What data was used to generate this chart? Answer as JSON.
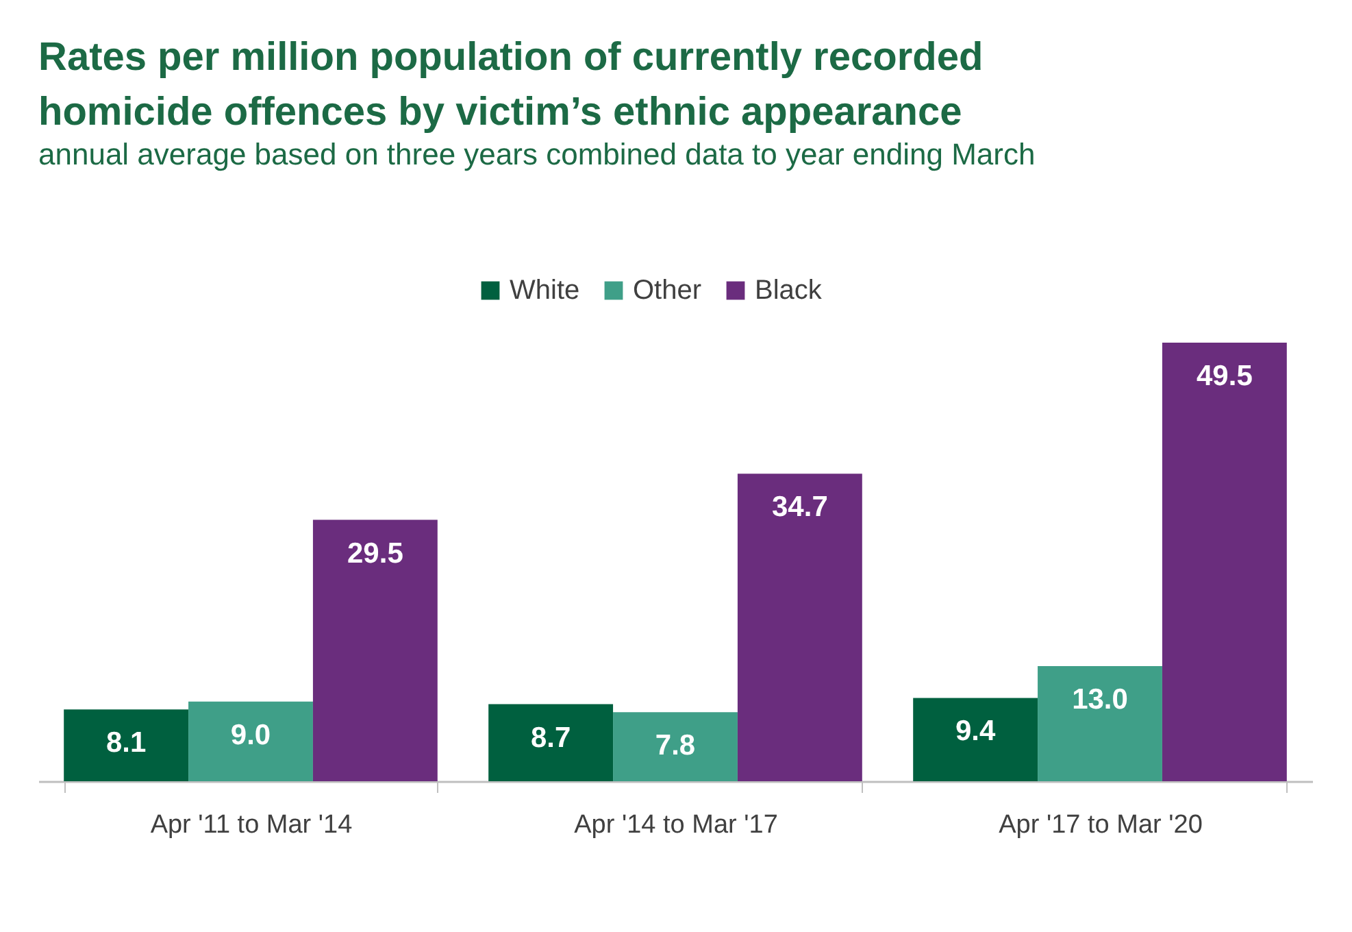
{
  "chart_data": {
    "type": "bar",
    "title": "Rates per million population of currently recorded homicide offences by victim’s ethnic appearance",
    "subtitle": "annual average based on three years combined data to year ending March",
    "categories": [
      "Apr '11 to Mar '14",
      "Apr '14 to Mar '17",
      "Apr '17 to Mar '20"
    ],
    "series": [
      {
        "name": "White",
        "color": "#00603f",
        "values": [
          8.1,
          8.7,
          9.4
        ],
        "value_labels": [
          "8.1",
          "8.7",
          "9.4"
        ]
      },
      {
        "name": "Other",
        "color": "#3f9f88",
        "values": [
          9.0,
          7.8,
          13.0
        ],
        "value_labels": [
          "9.0",
          "7.8",
          "13.0"
        ]
      },
      {
        "name": "Black",
        "color": "#6a2d7d",
        "values": [
          29.5,
          34.7,
          49.5
        ],
        "value_labels": [
          "29.5",
          "34.7",
          "49.5"
        ]
      }
    ],
    "legend": "top",
    "grid": false
  }
}
